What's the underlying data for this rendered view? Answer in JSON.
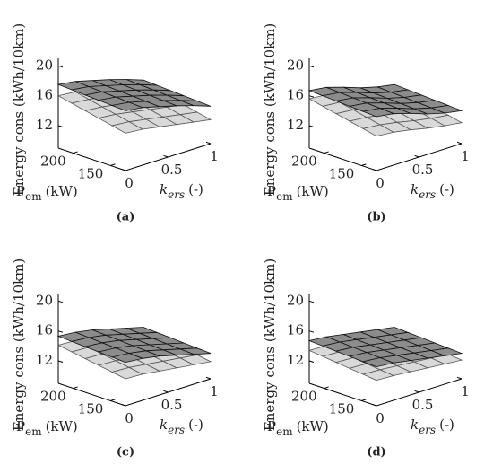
{
  "chart_data": [
    {
      "type": "surface",
      "caption": "(a)",
      "zlabel": "Energy cons (kWh/10km)",
      "ylabel": {
        "symbol": "P",
        "subscript": "em",
        "unit": "(kW)"
      },
      "xlabel": {
        "symbol": "k",
        "subscript": "ers",
        "unit": "(-)"
      },
      "x": [
        0,
        0.2,
        0.4,
        0.6,
        0.8,
        1
      ],
      "y": [
        130,
        148,
        166,
        184,
        202,
        220
      ],
      "xlim": [
        0,
        1
      ],
      "ylim": [
        130,
        220
      ],
      "zlim": [
        9,
        21
      ],
      "xticks": [
        0,
        0.5,
        1
      ],
      "yticks": [
        150,
        200
      ],
      "zticks": [
        12,
        16,
        20
      ],
      "surfaces": [
        {
          "color": "#d9d9d9",
          "z": [
            [
              14.0,
              13.8,
              13.4,
              13.0,
              12.6,
              12.2
            ],
            [
              14.4,
              14.2,
              13.8,
              13.4,
              13.0,
              12.6
            ],
            [
              14.8,
              14.6,
              14.2,
              13.8,
              13.4,
              13.0
            ],
            [
              15.2,
              15.0,
              14.6,
              14.2,
              13.8,
              13.4
            ],
            [
              15.6,
              15.4,
              15.0,
              14.6,
              14.2,
              13.8
            ],
            [
              16.0,
              15.8,
              15.4,
              15.0,
              14.6,
              14.2
            ]
          ]
        },
        {
          "color": "#8c8c8c",
          "z": [
            [
              17.0,
              16.7,
              16.1,
              15.5,
              14.8,
              14.0
            ],
            [
              17.1,
              16.8,
              16.2,
              15.6,
              14.9,
              14.1
            ],
            [
              17.2,
              16.9,
              16.3,
              15.7,
              15.0,
              14.2
            ],
            [
              17.3,
              17.0,
              16.4,
              15.8,
              15.1,
              14.3
            ],
            [
              17.4,
              17.1,
              16.5,
              15.9,
              15.2,
              14.4
            ],
            [
              17.5,
              17.2,
              16.6,
              16.0,
              15.3,
              14.5
            ]
          ]
        }
      ]
    },
    {
      "type": "surface",
      "caption": "(b)",
      "zlabel": "Energy cons (kWh/10km)",
      "ylabel": {
        "symbol": "P",
        "subscript": "em",
        "unit": "(kW)"
      },
      "xlabel": {
        "symbol": "k",
        "subscript": "ers",
        "unit": "(-)"
      },
      "x": [
        0,
        0.2,
        0.4,
        0.6,
        0.8,
        1
      ],
      "y": [
        130,
        148,
        166,
        184,
        202,
        220
      ],
      "xlim": [
        0,
        1
      ],
      "ylim": [
        130,
        220
      ],
      "zlim": [
        9,
        21
      ],
      "xticks": [
        0,
        0.5,
        1
      ],
      "yticks": [
        150,
        200
      ],
      "zticks": [
        12,
        16,
        20
      ],
      "surfaces": [
        {
          "color": "#d9d9d9",
          "z": [
            [
              13.6,
              13.4,
              13.0,
              12.5,
              12.1,
              11.8
            ],
            [
              14.0,
              13.8,
              13.4,
              12.9,
              12.5,
              12.2
            ],
            [
              14.4,
              14.2,
              13.8,
              13.3,
              12.9,
              12.6
            ],
            [
              14.8,
              14.6,
              14.2,
              13.7,
              13.3,
              13.0
            ],
            [
              15.2,
              15.0,
              14.6,
              14.1,
              13.7,
              13.4
            ],
            [
              15.6,
              15.4,
              15.0,
              14.5,
              14.1,
              13.8
            ]
          ]
        },
        {
          "color": "#8c8c8c",
          "z": [
            [
              16.2,
              15.9,
              15.2,
              14.4,
              13.8,
              13.4
            ],
            [
              16.3,
              16.0,
              15.3,
              14.5,
              13.9,
              13.5
            ],
            [
              16.4,
              16.1,
              15.4,
              14.6,
              14.0,
              13.6
            ],
            [
              16.5,
              16.2,
              15.5,
              14.7,
              14.1,
              13.7
            ],
            [
              16.6,
              16.3,
              15.6,
              14.8,
              14.2,
              13.8
            ],
            [
              16.7,
              16.4,
              15.7,
              14.9,
              14.3,
              13.9
            ]
          ]
        }
      ]
    },
    {
      "type": "surface",
      "caption": "(c)",
      "zlabel": "Energy cons (kWh/10km)",
      "ylabel": {
        "symbol": "P",
        "subscript": "em",
        "unit": "(kW)"
      },
      "xlabel": {
        "symbol": "k",
        "subscript": "ers",
        "unit": "(-)"
      },
      "x": [
        0,
        0.2,
        0.4,
        0.6,
        0.8,
        1
      ],
      "y": [
        130,
        148,
        166,
        184,
        202,
        220
      ],
      "xlim": [
        0,
        1
      ],
      "ylim": [
        130,
        220
      ],
      "zlim": [
        9,
        21
      ],
      "xticks": [
        0,
        0.5,
        1
      ],
      "yticks": [
        150,
        200
      ],
      "zticks": [
        12,
        16,
        20
      ],
      "surfaces": [
        {
          "color": "#d9d9d9",
          "z": [
            [
              12.6,
              12.5,
              12.2,
              11.9,
              11.6,
              11.3
            ],
            [
              12.9,
              12.8,
              12.5,
              12.2,
              11.9,
              11.6
            ],
            [
              13.2,
              13.1,
              12.8,
              12.5,
              12.2,
              11.9
            ],
            [
              13.5,
              13.4,
              13.1,
              12.8,
              12.5,
              12.2
            ],
            [
              13.8,
              13.7,
              13.4,
              13.1,
              12.8,
              12.5
            ],
            [
              14.1,
              14.0,
              13.7,
              13.4,
              13.1,
              12.8
            ]
          ]
        },
        {
          "color": "#8c8c8c",
          "z": [
            [
              14.8,
              14.6,
              14.2,
              13.6,
              13.0,
              12.4
            ],
            [
              14.9,
              14.7,
              14.3,
              13.7,
              13.1,
              12.5
            ],
            [
              15.0,
              14.8,
              14.4,
              13.8,
              13.2,
              12.6
            ],
            [
              15.1,
              14.9,
              14.5,
              13.9,
              13.3,
              12.7
            ],
            [
              15.2,
              15.0,
              14.6,
              14.0,
              13.4,
              12.8
            ],
            [
              15.3,
              15.1,
              14.7,
              14.1,
              13.5,
              12.9
            ]
          ]
        }
      ]
    },
    {
      "type": "surface",
      "caption": "(d)",
      "zlabel": "Energy cons (kWh/10km)",
      "ylabel": {
        "symbol": "P",
        "subscript": "em",
        "unit": "(kW)"
      },
      "xlabel": {
        "symbol": "k",
        "subscript": "ers",
        "unit": "(-)"
      },
      "x": [
        0,
        0.2,
        0.4,
        0.6,
        0.8,
        1
      ],
      "y": [
        130,
        148,
        166,
        184,
        202,
        220
      ],
      "xlim": [
        0,
        1
      ],
      "ylim": [
        130,
        220
      ],
      "zlim": [
        9,
        21
      ],
      "xticks": [
        0,
        0.5,
        1
      ],
      "yticks": [
        150,
        200
      ],
      "zticks": [
        12,
        16,
        20
      ],
      "surfaces": [
        {
          "color": "#d9d9d9",
          "z": [
            [
              12.4,
              12.3,
              12.1,
              11.9,
              11.7,
              11.5
            ],
            [
              12.6,
              12.5,
              12.3,
              12.1,
              11.9,
              11.7
            ],
            [
              12.8,
              12.7,
              12.5,
              12.3,
              12.1,
              11.9
            ],
            [
              13.0,
              12.9,
              12.7,
              12.5,
              12.3,
              12.1
            ],
            [
              13.2,
              13.1,
              12.9,
              12.7,
              12.5,
              12.3
            ],
            [
              13.4,
              13.3,
              13.1,
              12.9,
              12.7,
              12.5
            ]
          ]
        },
        {
          "color": "#8c8c8c",
          "z": [
            [
              14.2,
              14.0,
              13.6,
              13.2,
              12.8,
              12.4
            ],
            [
              14.3,
              14.1,
              13.7,
              13.3,
              12.9,
              12.5
            ],
            [
              14.4,
              14.2,
              13.8,
              13.4,
              13.0,
              12.6
            ],
            [
              14.5,
              14.3,
              13.9,
              13.5,
              13.1,
              12.7
            ],
            [
              14.6,
              14.4,
              14.0,
              13.6,
              13.2,
              12.8
            ],
            [
              14.7,
              14.5,
              14.1,
              13.7,
              13.3,
              12.9
            ]
          ]
        }
      ]
    }
  ]
}
